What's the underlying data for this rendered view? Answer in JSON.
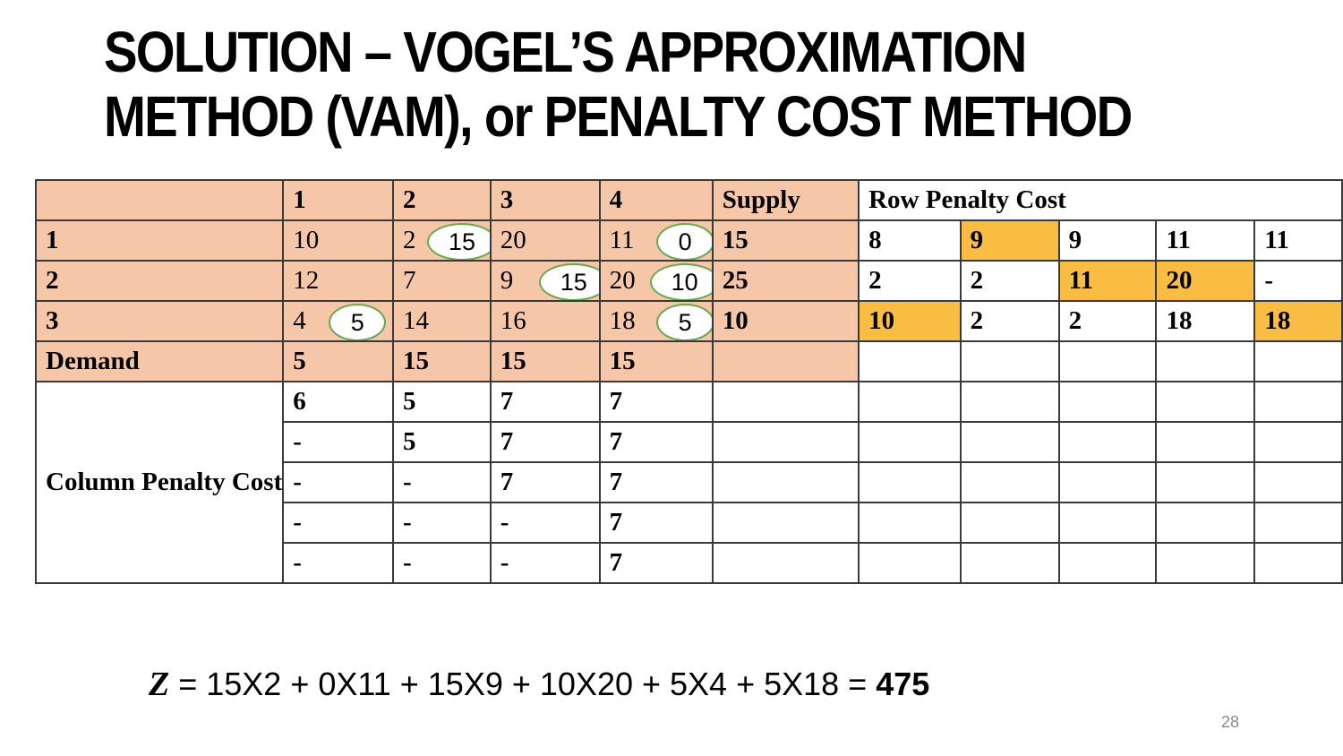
{
  "title": {
    "line1": "SOLUTION – VOGEL’S APPROXIMATION",
    "line2": "METHOD (VAM), or PENALTY COST METHOD"
  },
  "table": {
    "header": [
      "1",
      "2",
      "3",
      "4"
    ],
    "supply_label": "Supply",
    "row_penalty_label": "Row Penalty Cost",
    "demand_label": "Demand",
    "column_penalty_label": "Column Penalty Cost",
    "rows": [
      {
        "label": "1",
        "costs": [
          "10",
          "2",
          "20",
          "11"
        ],
        "allocations": [
          "",
          "15",
          "",
          "0"
        ],
        "supply": "15",
        "penalties": [
          "8",
          "9",
          "9",
          "11",
          "11"
        ],
        "highlight": [
          false,
          true,
          false,
          false,
          false
        ]
      },
      {
        "label": "2",
        "costs": [
          "12",
          "7",
          "9",
          "20"
        ],
        "allocations": [
          "",
          "",
          "15",
          "10"
        ],
        "supply": "25",
        "penalties": [
          "2",
          "2",
          "11",
          "20",
          "-"
        ],
        "highlight": [
          false,
          false,
          true,
          true,
          false
        ]
      },
      {
        "label": "3",
        "costs": [
          "4",
          "14",
          "16",
          "18"
        ],
        "allocations": [
          "5",
          "",
          "",
          "5"
        ],
        "supply": "10",
        "penalties": [
          "10",
          "2",
          "2",
          "18",
          "18"
        ],
        "highlight": [
          true,
          false,
          false,
          false,
          true
        ]
      }
    ],
    "demand": [
      "5",
      "15",
      "15",
      "15"
    ],
    "column_penalties": [
      [
        "6",
        "5",
        "7",
        "7"
      ],
      [
        "-",
        "5",
        "7",
        "7"
      ],
      [
        "-",
        "-",
        "7",
        "7"
      ],
      [
        "-",
        "-",
        "-",
        "7"
      ],
      [
        "-",
        "-",
        "-",
        "7"
      ]
    ]
  },
  "formula": {
    "variable": "Z",
    "expression": " = 15X2 + 0X11 + 15X9 + 10X20 + 5X4 + 5X18 = ",
    "result": "475"
  },
  "page_number": "28",
  "colors": {
    "peach": "#f5c6a8",
    "highlight_orange": "#f9bd43",
    "allocation_circle_border": "#6aa84f"
  }
}
